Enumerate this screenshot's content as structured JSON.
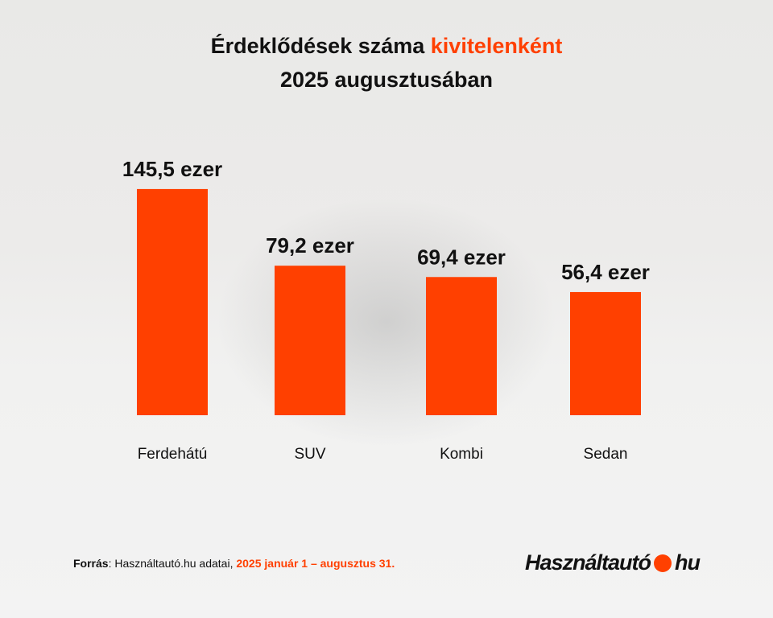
{
  "title": {
    "line1_prefix": "Érdeklődések száma ",
    "line1_accent": "kivitelenként",
    "line2": "2025 augusztusában"
  },
  "chart_data": {
    "type": "bar",
    "categories": [
      "Ferdehátú",
      "SUV",
      "Kombi",
      "Sedan"
    ],
    "values": [
      145.5,
      79.2,
      69.4,
      56.4
    ],
    "data_labels": [
      "145,5 ezer",
      "79,2 ezer",
      "69,4 ezer",
      "56,4 ezer"
    ],
    "unit": "ezer",
    "grid": false,
    "bar_color": "#ff4000"
  },
  "footer": {
    "source_label": "Forrás",
    "source_text": ": Használtautó.hu adatai, ",
    "source_period": "2025 január 1 – augusztus 31.",
    "logo_left": "Használtautó",
    "logo_right": "hu"
  }
}
